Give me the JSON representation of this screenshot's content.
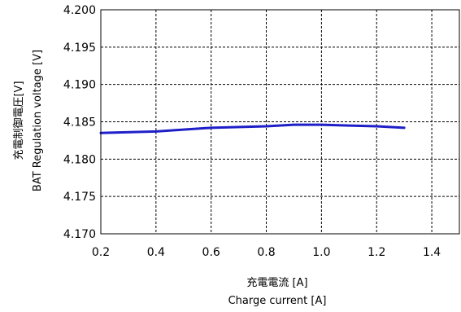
{
  "chart_data": {
    "type": "line",
    "xlabel_lines": [
      "充電電流 [A]",
      "Charge current [A]"
    ],
    "ylabel_lines": [
      "充電制御電圧[V]",
      "BAT  Regulation voltage [V]"
    ],
    "xlim": [
      0.2,
      1.5
    ],
    "ylim": [
      4.17,
      4.2
    ],
    "x_ticks": [
      "0.2",
      "0.4",
      "0.6",
      "0.8",
      "1.0",
      "1.2",
      "1.4"
    ],
    "x_tick_values": [
      0.2,
      0.4,
      0.6,
      0.8,
      1.0,
      1.2,
      1.4
    ],
    "y_ticks": [
      "4.170",
      "4.175",
      "4.180",
      "4.185",
      "4.190",
      "4.195",
      "4.200"
    ],
    "y_tick_values": [
      4.17,
      4.175,
      4.18,
      4.185,
      4.19,
      4.195,
      4.2
    ],
    "grid": true,
    "series": [
      {
        "color": "#1f1fc8",
        "x": [
          0.2,
          0.4,
          0.6,
          0.8,
          0.9,
          1.0,
          1.1,
          1.2,
          1.3
        ],
        "y": [
          4.1835,
          4.1837,
          4.1842,
          4.1844,
          4.1846,
          4.1846,
          4.1845,
          4.1844,
          4.1842
        ]
      }
    ]
  }
}
